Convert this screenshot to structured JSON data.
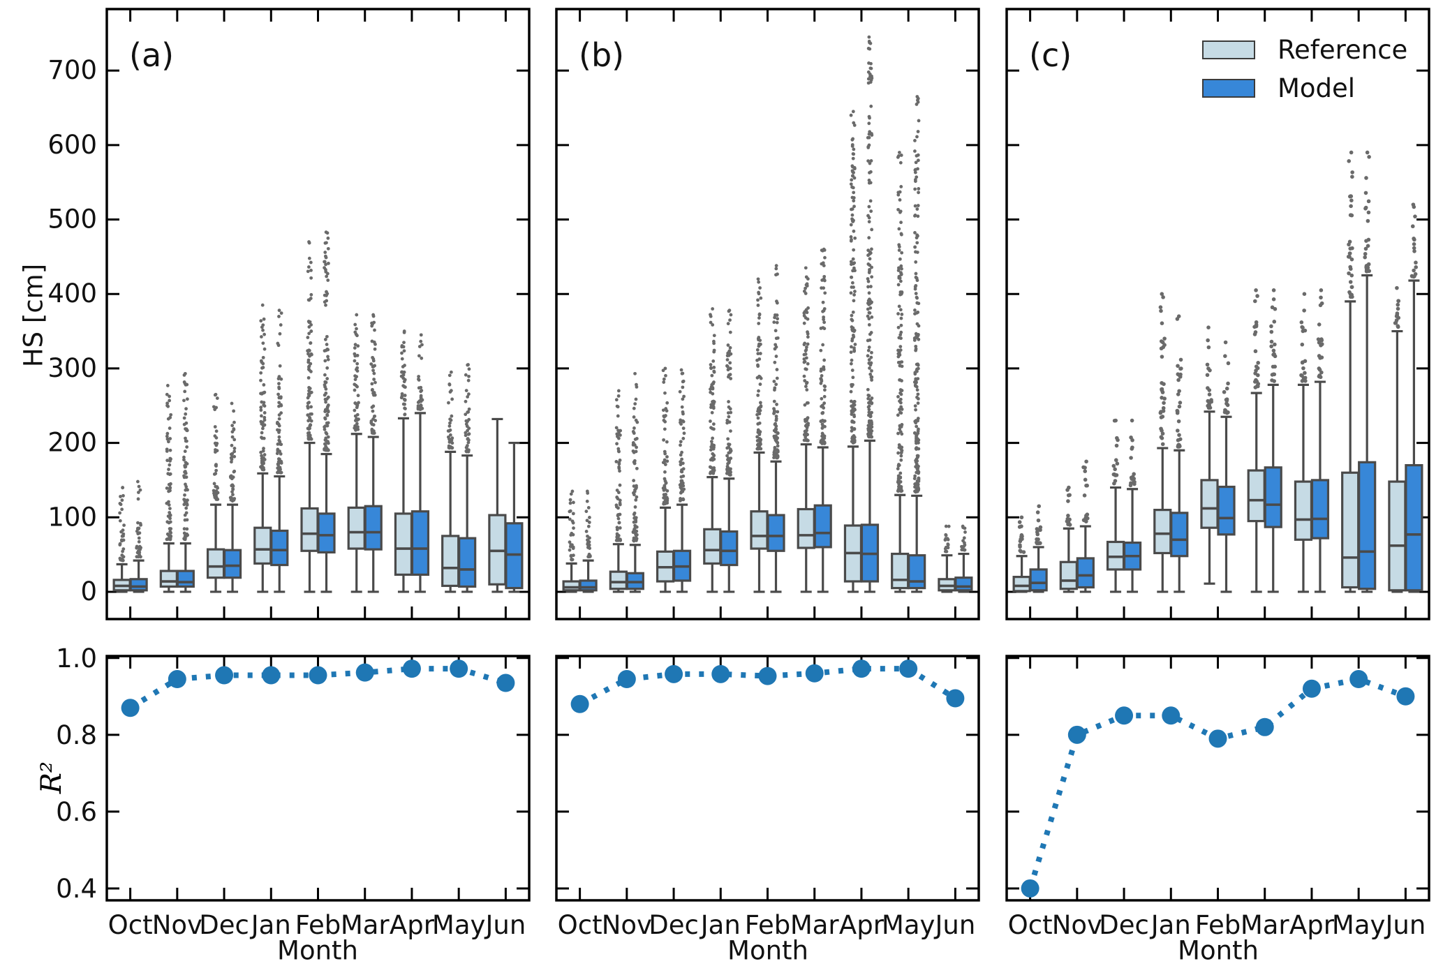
{
  "figure": {
    "panel_letters": [
      "(a)",
      "(b)",
      "(c)"
    ]
  },
  "axes": {
    "hs_ylabel": "HS [cm]",
    "r2_ylabel": "R²",
    "xlabel": "Month",
    "months": [
      "Oct",
      "Nov",
      "Dec",
      "Jan",
      "Feb",
      "Mar",
      "Apr",
      "May",
      "Jun"
    ],
    "hs_yticks": [
      0,
      100,
      200,
      300,
      400,
      500,
      600,
      700
    ],
    "r2_yticks": [
      0.4,
      0.6,
      0.8,
      1.0
    ],
    "hs_ylim": [
      -36.6,
      782.6
    ],
    "r2_ylim": [
      0.369,
      1.005
    ]
  },
  "legend": {
    "items": [
      {
        "label": "Reference",
        "color": "#c6dbe5"
      },
      {
        "label": "Model",
        "color": "#3787d8"
      }
    ]
  },
  "style": {
    "box_edge": "#4a4a4a",
    "outlier_dot": "#565656",
    "r2_color": "#1f77b4",
    "axis_color": "#000000"
  },
  "chart_data": [
    {
      "id": "top-a",
      "type": "box",
      "panel": "a",
      "title": "(a)",
      "ylabel": "HS [cm]",
      "ylim": [
        -36.6,
        782.6
      ],
      "grid": false,
      "categories": [
        "Oct",
        "Nov",
        "Dec",
        "Jan",
        "Feb",
        "Mar",
        "Apr",
        "May",
        "Jun"
      ],
      "series": [
        {
          "name": "Reference",
          "color": "#c6dbe5",
          "boxes": [
            {
              "q1": 2,
              "med": 8,
              "q3": 16,
              "lo": 0,
              "hi": 37,
              "out": 140
            },
            {
              "q1": 7,
              "med": 14,
              "q3": 28,
              "lo": 0,
              "hi": 65,
              "out": 277
            },
            {
              "q1": 19,
              "med": 34,
              "q3": 57,
              "lo": 0,
              "hi": 117,
              "out": 265
            },
            {
              "q1": 38,
              "med": 57,
              "q3": 86,
              "lo": 0,
              "hi": 159,
              "out": 385
            },
            {
              "q1": 55,
              "med": 78,
              "q3": 112,
              "lo": 0,
              "hi": 200,
              "out": 470
            },
            {
              "q1": 58,
              "med": 80,
              "q3": 113,
              "lo": 0,
              "hi": 212,
              "out": 372
            },
            {
              "q1": 23,
              "med": 58,
              "q3": 105,
              "lo": 0,
              "hi": 233,
              "out": 350
            },
            {
              "q1": 8,
              "med": 32,
              "q3": 75,
              "lo": 0,
              "hi": 188,
              "out": 295
            },
            {
              "q1": 10,
              "med": 55,
              "q3": 103,
              "lo": 0,
              "hi": 232,
              "out": null
            }
          ]
        },
        {
          "name": "Model",
          "color": "#3787d8",
          "boxes": [
            {
              "q1": 2,
              "med": 7,
              "q3": 17,
              "lo": 0,
              "hi": 42,
              "out": 148
            },
            {
              "q1": 7,
              "med": 13,
              "q3": 28,
              "lo": 0,
              "hi": 65,
              "out": 293
            },
            {
              "q1": 19,
              "med": 35,
              "q3": 56,
              "lo": 0,
              "hi": 117,
              "out": 253
            },
            {
              "q1": 36,
              "med": 56,
              "q3": 82,
              "lo": 0,
              "hi": 155,
              "out": 378
            },
            {
              "q1": 53,
              "med": 76,
              "q3": 105,
              "lo": 0,
              "hi": 185,
              "out": 483
            },
            {
              "q1": 57,
              "med": 80,
              "q3": 115,
              "lo": 0,
              "hi": 208,
              "out": 372
            },
            {
              "q1": 23,
              "med": 58,
              "q3": 108,
              "lo": 0,
              "hi": 240,
              "out": 345
            },
            {
              "q1": 7,
              "med": 30,
              "q3": 72,
              "lo": 0,
              "hi": 183,
              "out": 305
            },
            {
              "q1": 5,
              "med": 50,
              "q3": 92,
              "lo": 0,
              "hi": 200,
              "out": null
            }
          ]
        }
      ]
    },
    {
      "id": "top-b",
      "type": "box",
      "panel": "b",
      "title": "(b)",
      "ylabel": "",
      "ylim": [
        -36.6,
        782.6
      ],
      "grid": false,
      "categories": [
        "Oct",
        "Nov",
        "Dec",
        "Jan",
        "Feb",
        "Mar",
        "Apr",
        "May",
        "Jun"
      ],
      "series": [
        {
          "name": "Reference",
          "color": "#c6dbe5",
          "boxes": [
            {
              "q1": 2,
              "med": 6,
              "q3": 14,
              "lo": 0,
              "hi": 38,
              "out": 135
            },
            {
              "q1": 4,
              "med": 13,
              "q3": 27,
              "lo": 0,
              "hi": 64,
              "out": 270
            },
            {
              "q1": 14,
              "med": 33,
              "q3": 54,
              "lo": 0,
              "hi": 113,
              "out": 300
            },
            {
              "q1": 38,
              "med": 56,
              "q3": 84,
              "lo": 0,
              "hi": 154,
              "out": 380
            },
            {
              "q1": 58,
              "med": 75,
              "q3": 108,
              "lo": 0,
              "hi": 187,
              "out": 420
            },
            {
              "q1": 59,
              "med": 76,
              "q3": 111,
              "lo": 0,
              "hi": 198,
              "out": 435
            },
            {
              "q1": 14,
              "med": 52,
              "q3": 89,
              "lo": 0,
              "hi": 195,
              "out": 645
            },
            {
              "q1": 5,
              "med": 16,
              "q3": 51,
              "lo": 0,
              "hi": 130,
              "out": 590
            },
            {
              "q1": 2,
              "med": 8,
              "q3": 17,
              "lo": 0,
              "hi": 49,
              "out": 88
            }
          ]
        },
        {
          "name": "Model",
          "color": "#3787d8",
          "boxes": [
            {
              "q1": 2,
              "med": 6,
              "q3": 15,
              "lo": 0,
              "hi": 42,
              "out": 135
            },
            {
              "q1": 4,
              "med": 13,
              "q3": 25,
              "lo": 0,
              "hi": 63,
              "out": 293
            },
            {
              "q1": 15,
              "med": 34,
              "q3": 55,
              "lo": 0,
              "hi": 117,
              "out": 298
            },
            {
              "q1": 36,
              "med": 55,
              "q3": 81,
              "lo": 0,
              "hi": 152,
              "out": 378
            },
            {
              "q1": 55,
              "med": 75,
              "q3": 103,
              "lo": 0,
              "hi": 175,
              "out": 438
            },
            {
              "q1": 60,
              "med": 79,
              "q3": 116,
              "lo": 0,
              "hi": 194,
              "out": 460
            },
            {
              "q1": 14,
              "med": 51,
              "q3": 90,
              "lo": 0,
              "hi": 203,
              "out": 745
            },
            {
              "q1": 5,
              "med": 14,
              "q3": 49,
              "lo": 0,
              "hi": 129,
              "out": 665
            },
            {
              "q1": 2,
              "med": 7,
              "q3": 19,
              "lo": 0,
              "hi": 51,
              "out": 88
            }
          ]
        }
      ]
    },
    {
      "id": "top-c",
      "type": "box",
      "panel": "c",
      "title": "(c)",
      "ylabel": "",
      "ylim": [
        -36.6,
        782.6
      ],
      "grid": false,
      "categories": [
        "Oct",
        "Nov",
        "Dec",
        "Jan",
        "Feb",
        "Mar",
        "Apr",
        "May",
        "Jun"
      ],
      "series": [
        {
          "name": "Reference",
          "color": "#c6dbe5",
          "boxes": [
            {
              "q1": 1,
              "med": 8,
              "q3": 20,
              "lo": 0,
              "hi": 48,
              "out": 100
            },
            {
              "q1": 4,
              "med": 15,
              "q3": 40,
              "lo": 0,
              "hi": 85,
              "out": 140
            },
            {
              "q1": 30,
              "med": 47,
              "q3": 67,
              "lo": 0,
              "hi": 140,
              "out": 230
            },
            {
              "q1": 52,
              "med": 78,
              "q3": 110,
              "lo": 0,
              "hi": 193,
              "out": 400
            },
            {
              "q1": 86,
              "med": 112,
              "q3": 150,
              "lo": 11,
              "hi": 242,
              "out": 355
            },
            {
              "q1": 95,
              "med": 123,
              "q3": 163,
              "lo": 0,
              "hi": 267,
              "out": 405
            },
            {
              "q1": 70,
              "med": 97,
              "q3": 148,
              "lo": 0,
              "hi": 278,
              "out": 400
            },
            {
              "q1": 6,
              "med": 46,
              "q3": 160,
              "lo": 0,
              "hi": 390,
              "out": 590
            },
            {
              "q1": 2,
              "med": 62,
              "q3": 148,
              "lo": 0,
              "hi": 350,
              "out": 408
            }
          ]
        },
        {
          "name": "Model",
          "color": "#3787d8",
          "boxes": [
            {
              "q1": 2,
              "med": 12,
              "q3": 30,
              "lo": 0,
              "hi": 60,
              "out": 115
            },
            {
              "q1": 6,
              "med": 22,
              "q3": 45,
              "lo": 0,
              "hi": 88,
              "out": 175
            },
            {
              "q1": 30,
              "med": 48,
              "q3": 66,
              "lo": 0,
              "hi": 138,
              "out": 230
            },
            {
              "q1": 48,
              "med": 70,
              "q3": 106,
              "lo": 0,
              "hi": 190,
              "out": 370
            },
            {
              "q1": 77,
              "med": 99,
              "q3": 141,
              "lo": 0,
              "hi": 235,
              "out": 335
            },
            {
              "q1": 87,
              "med": 117,
              "q3": 167,
              "lo": 0,
              "hi": 278,
              "out": 405
            },
            {
              "q1": 72,
              "med": 98,
              "q3": 150,
              "lo": 0,
              "hi": 282,
              "out": 405
            },
            {
              "q1": 4,
              "med": 54,
              "q3": 174,
              "lo": 0,
              "hi": 425,
              "out": 590
            },
            {
              "q1": 2,
              "med": 77,
              "q3": 170,
              "lo": 0,
              "hi": 418,
              "out": 520
            }
          ]
        }
      ]
    },
    {
      "id": "bottom-a",
      "type": "line",
      "panel": "a",
      "ylabel": "R²",
      "xlabel": "Month",
      "ylim": [
        0.369,
        1.005
      ],
      "legend_position": "none",
      "grid": false,
      "categories": [
        "Oct",
        "Nov",
        "Dec",
        "Jan",
        "Feb",
        "Mar",
        "Apr",
        "May",
        "Jun"
      ],
      "series": [
        {
          "name": "R²",
          "color": "#1f77b4",
          "values": [
            0.87,
            0.945,
            0.955,
            0.955,
            0.955,
            0.962,
            0.972,
            0.972,
            0.935
          ]
        }
      ]
    },
    {
      "id": "bottom-b",
      "type": "line",
      "panel": "b",
      "ylabel": "",
      "xlabel": "Month",
      "ylim": [
        0.369,
        1.005
      ],
      "legend_position": "none",
      "grid": false,
      "categories": [
        "Oct",
        "Nov",
        "Dec",
        "Jan",
        "Feb",
        "Mar",
        "Apr",
        "May",
        "Jun"
      ],
      "series": [
        {
          "name": "R²",
          "color": "#1f77b4",
          "values": [
            0.88,
            0.945,
            0.958,
            0.958,
            0.953,
            0.96,
            0.972,
            0.972,
            0.895
          ]
        }
      ]
    },
    {
      "id": "bottom-c",
      "type": "line",
      "panel": "c",
      "ylabel": "",
      "xlabel": "Month",
      "ylim": [
        0.369,
        1.005
      ],
      "legend_position": "none",
      "grid": false,
      "categories": [
        "Oct",
        "Nov",
        "Dec",
        "Jan",
        "Feb",
        "Mar",
        "Apr",
        "May",
        "Jun"
      ],
      "series": [
        {
          "name": "R²",
          "color": "#1f77b4",
          "values": [
            0.4,
            0.8,
            0.85,
            0.85,
            0.79,
            0.82,
            0.92,
            0.945,
            0.9
          ]
        }
      ]
    }
  ]
}
